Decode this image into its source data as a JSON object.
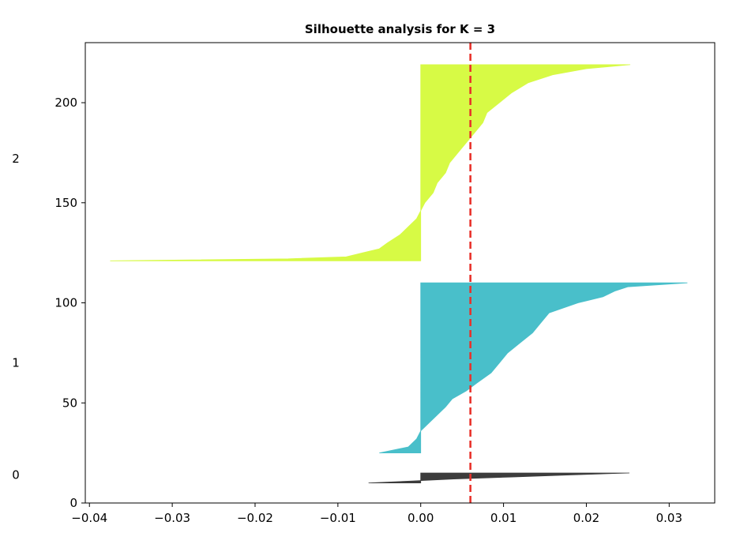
{
  "chart_data": {
    "type": "area",
    "title": "Silhouette analysis for K = 3",
    "xlabel": "",
    "ylabel": "",
    "xlim": [
      -0.0405,
      0.0355
    ],
    "ylim": [
      0,
      230
    ],
    "xticks": [
      -0.04,
      -0.03,
      -0.02,
      -0.01,
      0.0,
      0.01,
      0.02,
      0.03
    ],
    "xtick_labels": [
      "−0.04",
      "−0.03",
      "−0.02",
      "−0.01",
      "0.00",
      "0.01",
      "0.02",
      "0.03"
    ],
    "yticks": [
      0,
      50,
      100,
      150,
      200
    ],
    "ytick_labels": [
      "0",
      "50",
      "100",
      "150",
      "200"
    ],
    "grid": false,
    "legend": "none",
    "average_silhouette": 0.006,
    "average_line_color": "#e8322b",
    "clusters": [
      {
        "label": "0",
        "color": "#3c3c3c",
        "y_range": [
          10,
          15
        ],
        "label_y": 14,
        "profile": [
          [
            10.0,
            -0.0063
          ],
          [
            11.0,
            -0.001
          ],
          [
            12.0,
            0.004
          ],
          [
            13.0,
            0.011
          ],
          [
            14.0,
            0.018
          ],
          [
            15.0,
            0.0252
          ]
        ]
      },
      {
        "label": "1",
        "color": "#49bfca",
        "y_range": [
          25,
          110
        ],
        "label_y": 70,
        "profile": [
          [
            25,
            -0.005
          ],
          [
            28,
            -0.0015
          ],
          [
            32,
            -0.0005
          ],
          [
            36,
            0.0
          ],
          [
            40,
            0.001
          ],
          [
            44,
            0.002
          ],
          [
            48,
            0.003
          ],
          [
            52,
            0.0038
          ],
          [
            56,
            0.0055
          ],
          [
            60,
            0.0068
          ],
          [
            65,
            0.0085
          ],
          [
            70,
            0.0095
          ],
          [
            75,
            0.0105
          ],
          [
            80,
            0.012
          ],
          [
            85,
            0.0135
          ],
          [
            90,
            0.0145
          ],
          [
            95,
            0.0155
          ],
          [
            100,
            0.019
          ],
          [
            103,
            0.022
          ],
          [
            106,
            0.0235
          ],
          [
            108,
            0.025
          ],
          [
            110,
            0.0322
          ]
        ]
      },
      {
        "label": "2",
        "color": "#d7fa45",
        "y_range": [
          121,
          219
        ],
        "label_y": 172,
        "profile": [
          [
            121,
            -0.0375
          ],
          [
            122,
            -0.016
          ],
          [
            123,
            -0.009
          ],
          [
            125,
            -0.007
          ],
          [
            127,
            -0.005
          ],
          [
            130,
            -0.004
          ],
          [
            134,
            -0.0025
          ],
          [
            138,
            -0.0015
          ],
          [
            142,
            -0.0005
          ],
          [
            146,
            0.0
          ],
          [
            150,
            0.0005
          ],
          [
            155,
            0.0015
          ],
          [
            160,
            0.002
          ],
          [
            165,
            0.003
          ],
          [
            170,
            0.0035
          ],
          [
            175,
            0.0045
          ],
          [
            180,
            0.0055
          ],
          [
            185,
            0.0065
          ],
          [
            190,
            0.0075
          ],
          [
            195,
            0.008
          ],
          [
            200,
            0.0095
          ],
          [
            205,
            0.011
          ],
          [
            210,
            0.013
          ],
          [
            214,
            0.016
          ],
          [
            217,
            0.02
          ],
          [
            219,
            0.0253
          ]
        ]
      }
    ]
  }
}
